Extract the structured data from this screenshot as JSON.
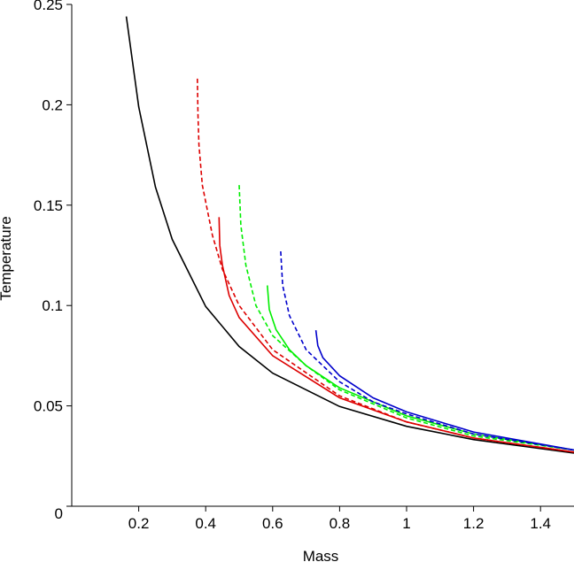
{
  "chart_data": {
    "type": "line",
    "xlabel": "Mass",
    "ylabel": "Temperature",
    "xlim": [
      0,
      1.5
    ],
    "ylim": [
      0,
      0.25
    ],
    "xticks": [
      0.2,
      0.4,
      0.6,
      0.8,
      1,
      1.2,
      1.4
    ],
    "yticks": [
      0,
      0.05,
      0.1,
      0.15,
      0.2,
      0.25
    ],
    "series": [
      {
        "color": "#000000",
        "dashed": false,
        "x": [
          0.163,
          0.2,
          0.25,
          0.3,
          0.4,
          0.5,
          0.6,
          0.8,
          1.0,
          1.2,
          1.5
        ],
        "values": [
          0.244,
          0.199,
          0.159,
          0.133,
          0.0995,
          0.0796,
          0.0663,
          0.0497,
          0.0398,
          0.0332,
          0.0265
        ]
      },
      {
        "color": "#dd0000",
        "dashed": false,
        "x": [
          0.44,
          0.442,
          0.45,
          0.47,
          0.5,
          0.6,
          0.8,
          1.0,
          1.2,
          1.5
        ],
        "values": [
          0.144,
          0.13,
          0.12,
          0.105,
          0.094,
          0.075,
          0.054,
          0.042,
          0.034,
          0.027
        ]
      },
      {
        "color": "#dd0000",
        "dashed": true,
        "x": [
          0.375,
          0.377,
          0.38,
          0.39,
          0.42,
          0.45,
          0.5,
          0.6,
          0.8,
          1.0,
          1.2,
          1.5
        ],
        "values": [
          0.213,
          0.195,
          0.18,
          0.16,
          0.135,
          0.118,
          0.1,
          0.078,
          0.055,
          0.042,
          0.034,
          0.027
        ]
      },
      {
        "color": "#00ee00",
        "dashed": false,
        "x": [
          0.584,
          0.59,
          0.61,
          0.65,
          0.7,
          0.8,
          1.0,
          1.2,
          1.5
        ],
        "values": [
          0.11,
          0.098,
          0.088,
          0.078,
          0.07,
          0.059,
          0.045,
          0.036,
          0.028
        ]
      },
      {
        "color": "#00ee00",
        "dashed": true,
        "x": [
          0.5,
          0.505,
          0.52,
          0.55,
          0.6,
          0.7,
          0.8,
          1.0,
          1.2,
          1.5
        ],
        "values": [
          0.16,
          0.14,
          0.12,
          0.1,
          0.085,
          0.07,
          0.058,
          0.044,
          0.035,
          0.028
        ]
      },
      {
        "color": "#0000cc",
        "dashed": false,
        "x": [
          0.729,
          0.735,
          0.75,
          0.8,
          0.9,
          1.0,
          1.2,
          1.5
        ],
        "values": [
          0.0877,
          0.08,
          0.074,
          0.065,
          0.054,
          0.047,
          0.037,
          0.028
        ]
      },
      {
        "color": "#0000cc",
        "dashed": true,
        "x": [
          0.624,
          0.63,
          0.65,
          0.7,
          0.8,
          0.9,
          1.0,
          1.2,
          1.5
        ],
        "values": [
          0.127,
          0.11,
          0.095,
          0.078,
          0.062,
          0.052,
          0.046,
          0.036,
          0.028
        ]
      }
    ]
  }
}
